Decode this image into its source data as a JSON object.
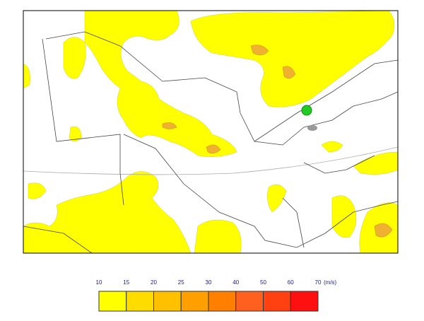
{
  "legend": {
    "ticks": [
      10,
      15,
      20,
      25,
      30,
      40,
      50,
      60,
      70
    ],
    "unit": "(m/s)",
    "colors": [
      "#ffff00",
      "#ffdc00",
      "#ffc000",
      "#ffa000",
      "#ff8000",
      "#ff6020",
      "#ff4010",
      "#ff1010"
    ]
  }
}
